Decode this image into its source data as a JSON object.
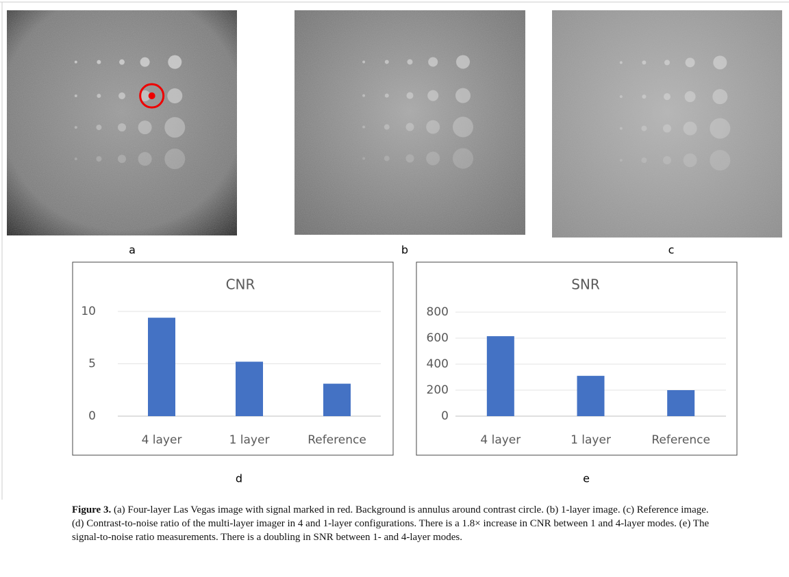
{
  "panels": {
    "a": "a",
    "b": "b",
    "c": "c",
    "d": "d",
    "e": "e"
  },
  "chart_data": [
    {
      "type": "bar",
      "title": "CNR",
      "categories": [
        "4 layer",
        "1 layer",
        "Reference"
      ],
      "values": [
        9.4,
        5.2,
        3.1
      ],
      "color": "#4472c4",
      "ylim": [
        0,
        10
      ],
      "yticks": [
        0,
        5,
        10
      ],
      "grid": true
    },
    {
      "type": "bar",
      "title": "SNR",
      "categories": [
        "4 layer",
        "1 layer",
        "Reference"
      ],
      "values": [
        615,
        310,
        200
      ],
      "color": "#4472c4",
      "ylim": [
        0,
        800
      ],
      "yticks": [
        0,
        200,
        400,
        600,
        800
      ],
      "grid": true
    }
  ],
  "caption": {
    "label": "Figure 3.",
    "text": "(a) Four-layer Las Vegas image with signal marked in red. Background is annulus around contrast circle. (b) 1-layer image. (c) Reference image. (d) Contrast-to-noise ratio of the multi-layer imager in 4 and 1-layer configurations. There is a 1.8× increase in CNR between 1 and 4-layer modes. (e) The signal-to-noise ratio measurements. There is a doubling in SNR between 1- and 4-layer modes."
  }
}
